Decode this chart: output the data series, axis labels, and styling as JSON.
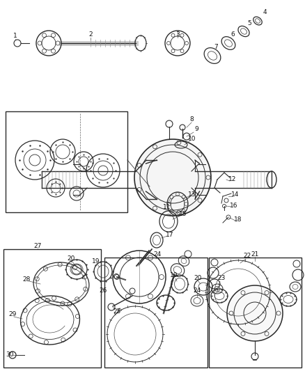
{
  "bg_color": "#ffffff",
  "line_color": "#2a2a2a",
  "label_color": "#111111",
  "fig_width": 4.38,
  "fig_height": 5.33,
  "dpi": 100
}
